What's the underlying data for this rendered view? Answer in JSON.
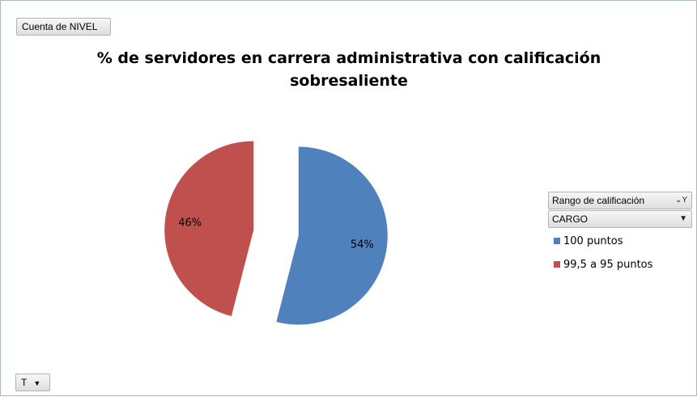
{
  "value_field": {
    "label": "Cuenta de NIVEL"
  },
  "axis_field": {
    "label": "T"
  },
  "legend_fields": [
    {
      "label": "Rango de calificación",
      "icon": "filter-icon"
    },
    {
      "label": "CARGO",
      "icon": "chevron-down-icon"
    }
  ],
  "chart_data": {
    "type": "pie",
    "title_line1": "% de servidores en carrera administrativa con calificación",
    "title_line2": "sobresaliente",
    "slices": [
      {
        "name": "100 puntos",
        "value": 54,
        "label": "54%",
        "color": "#4f81bd"
      },
      {
        "name": "99,5 a 95 puntos",
        "value": 46,
        "label": "46%",
        "color": "#c0504d"
      }
    ],
    "legend_position": "right",
    "exploded": true
  }
}
